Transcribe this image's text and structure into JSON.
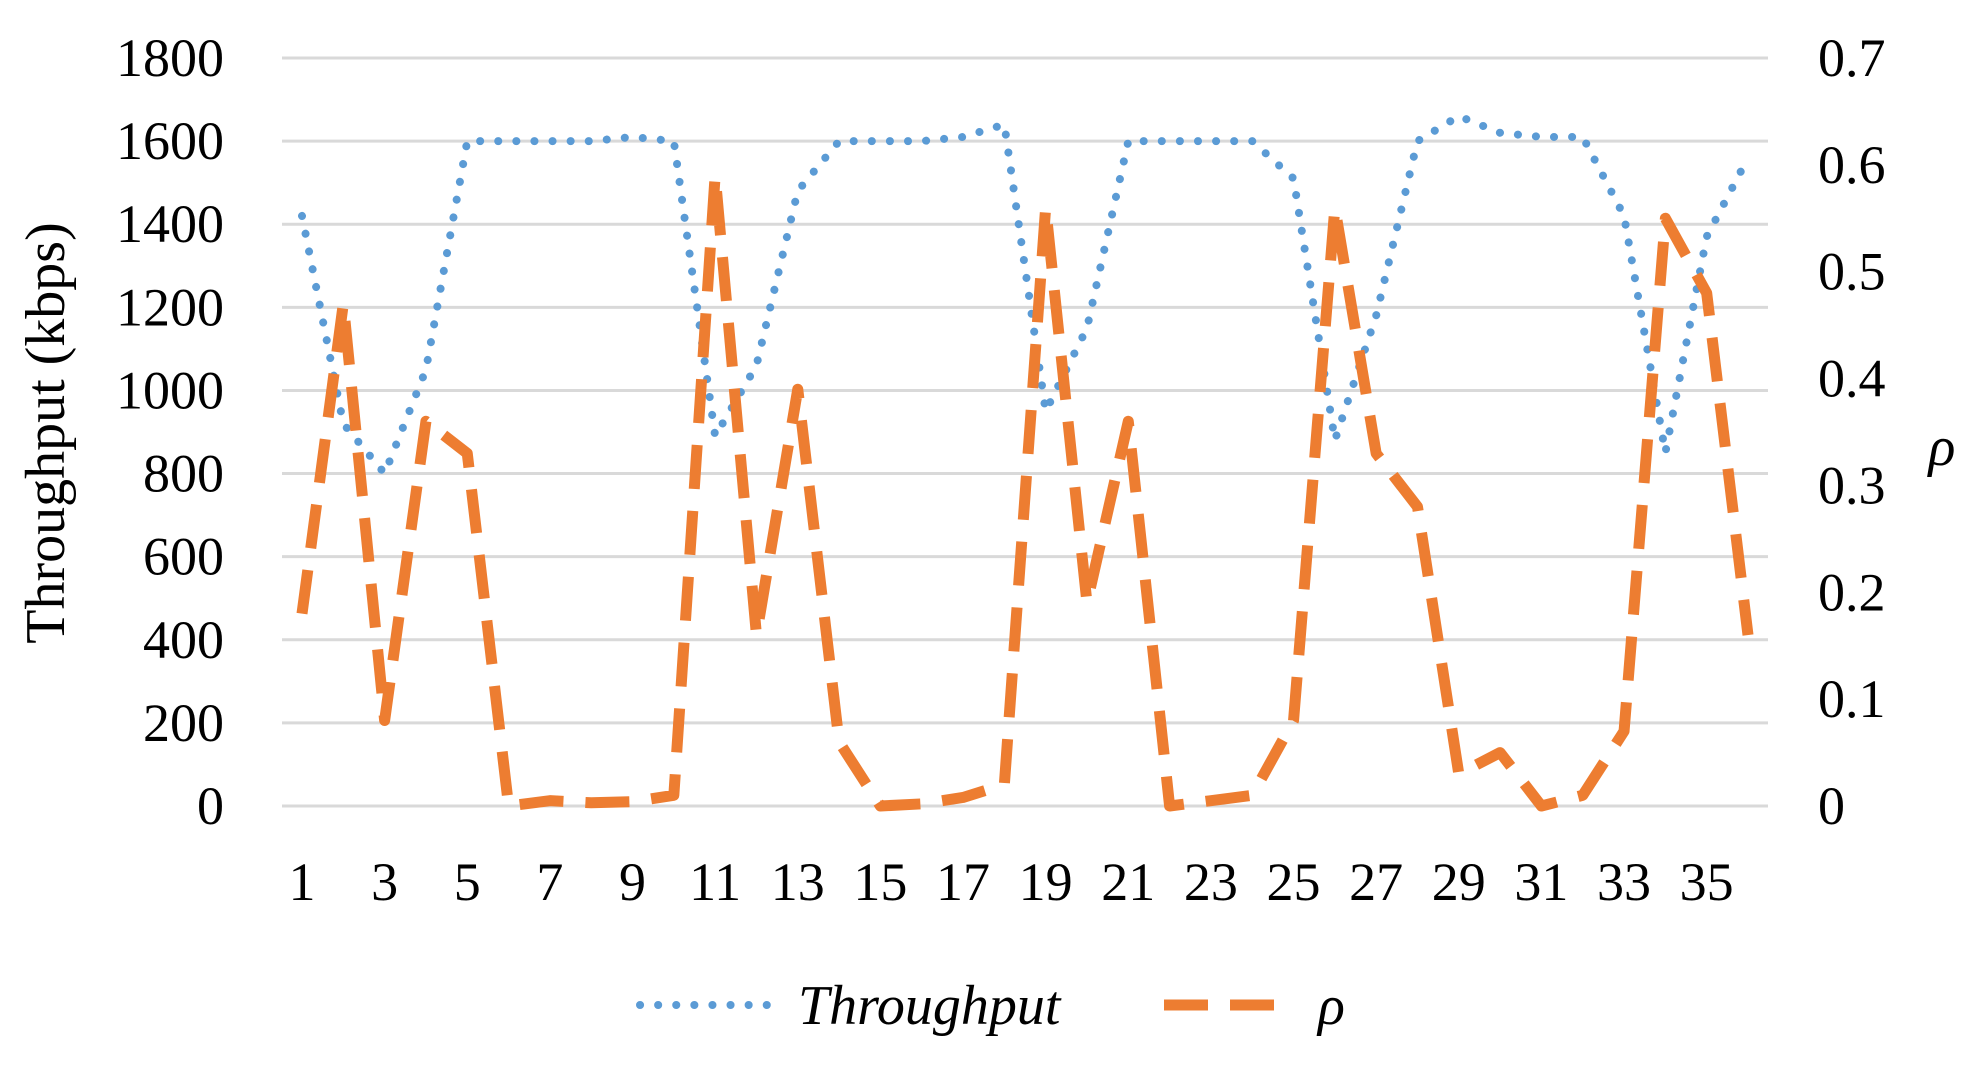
{
  "chart_data": {
    "type": "line",
    "x": [
      1,
      2,
      3,
      4,
      5,
      6,
      7,
      8,
      9,
      10,
      11,
      12,
      13,
      14,
      15,
      16,
      17,
      18,
      19,
      20,
      21,
      22,
      23,
      24,
      25,
      26,
      27,
      28,
      29,
      30,
      31,
      32,
      33,
      34,
      35,
      36
    ],
    "x_tick_labels": [
      "1",
      "3",
      "5",
      "7",
      "9",
      "11",
      "13",
      "15",
      "17",
      "19",
      "21",
      "23",
      "25",
      "27",
      "29",
      "31",
      "33",
      "35"
    ],
    "y_left": {
      "label": "Throughput (kbps)",
      "lim": [
        0,
        1800
      ],
      "ticks": [
        "0",
        "200",
        "400",
        "600",
        "800",
        "1000",
        "1200",
        "1400",
        "1600",
        "1800"
      ]
    },
    "y_right": {
      "label": "ρ",
      "lim": [
        0,
        0.7
      ],
      "ticks": [
        "0",
        "0.1",
        "0.2",
        "0.3",
        "0.4",
        "0.5",
        "0.6",
        "0.7"
      ]
    },
    "series": [
      {
        "name": "Throughput",
        "axis": "left",
        "color": "#5B9BD5",
        "style": "dotted",
        "values": [
          1420,
          920,
          800,
          1050,
          1600,
          1600,
          1600,
          1600,
          1610,
          1600,
          890,
          1060,
          1480,
          1600,
          1600,
          1600,
          1610,
          1640,
          950,
          1150,
          1600,
          1600,
          1600,
          1600,
          1510,
          880,
          1180,
          1600,
          1660,
          1620,
          1610,
          1610,
          1420,
          850,
          1370,
          1560
        ]
      },
      {
        "name": "ρ",
        "axis": "right",
        "color": "#ED7D31",
        "style": "dashed",
        "values": [
          0.18,
          0.47,
          0.08,
          0.36,
          0.33,
          0.0,
          0.005,
          0.003,
          0.004,
          0.01,
          0.59,
          0.16,
          0.39,
          0.06,
          0.0,
          0.002,
          0.008,
          0.02,
          0.56,
          0.19,
          0.36,
          0.0,
          0.005,
          0.01,
          0.08,
          0.56,
          0.33,
          0.28,
          0.03,
          0.05,
          0.0,
          0.01,
          0.07,
          0.55,
          0.48,
          0.16
        ]
      }
    ],
    "grid": true,
    "legend_position": "bottom"
  }
}
